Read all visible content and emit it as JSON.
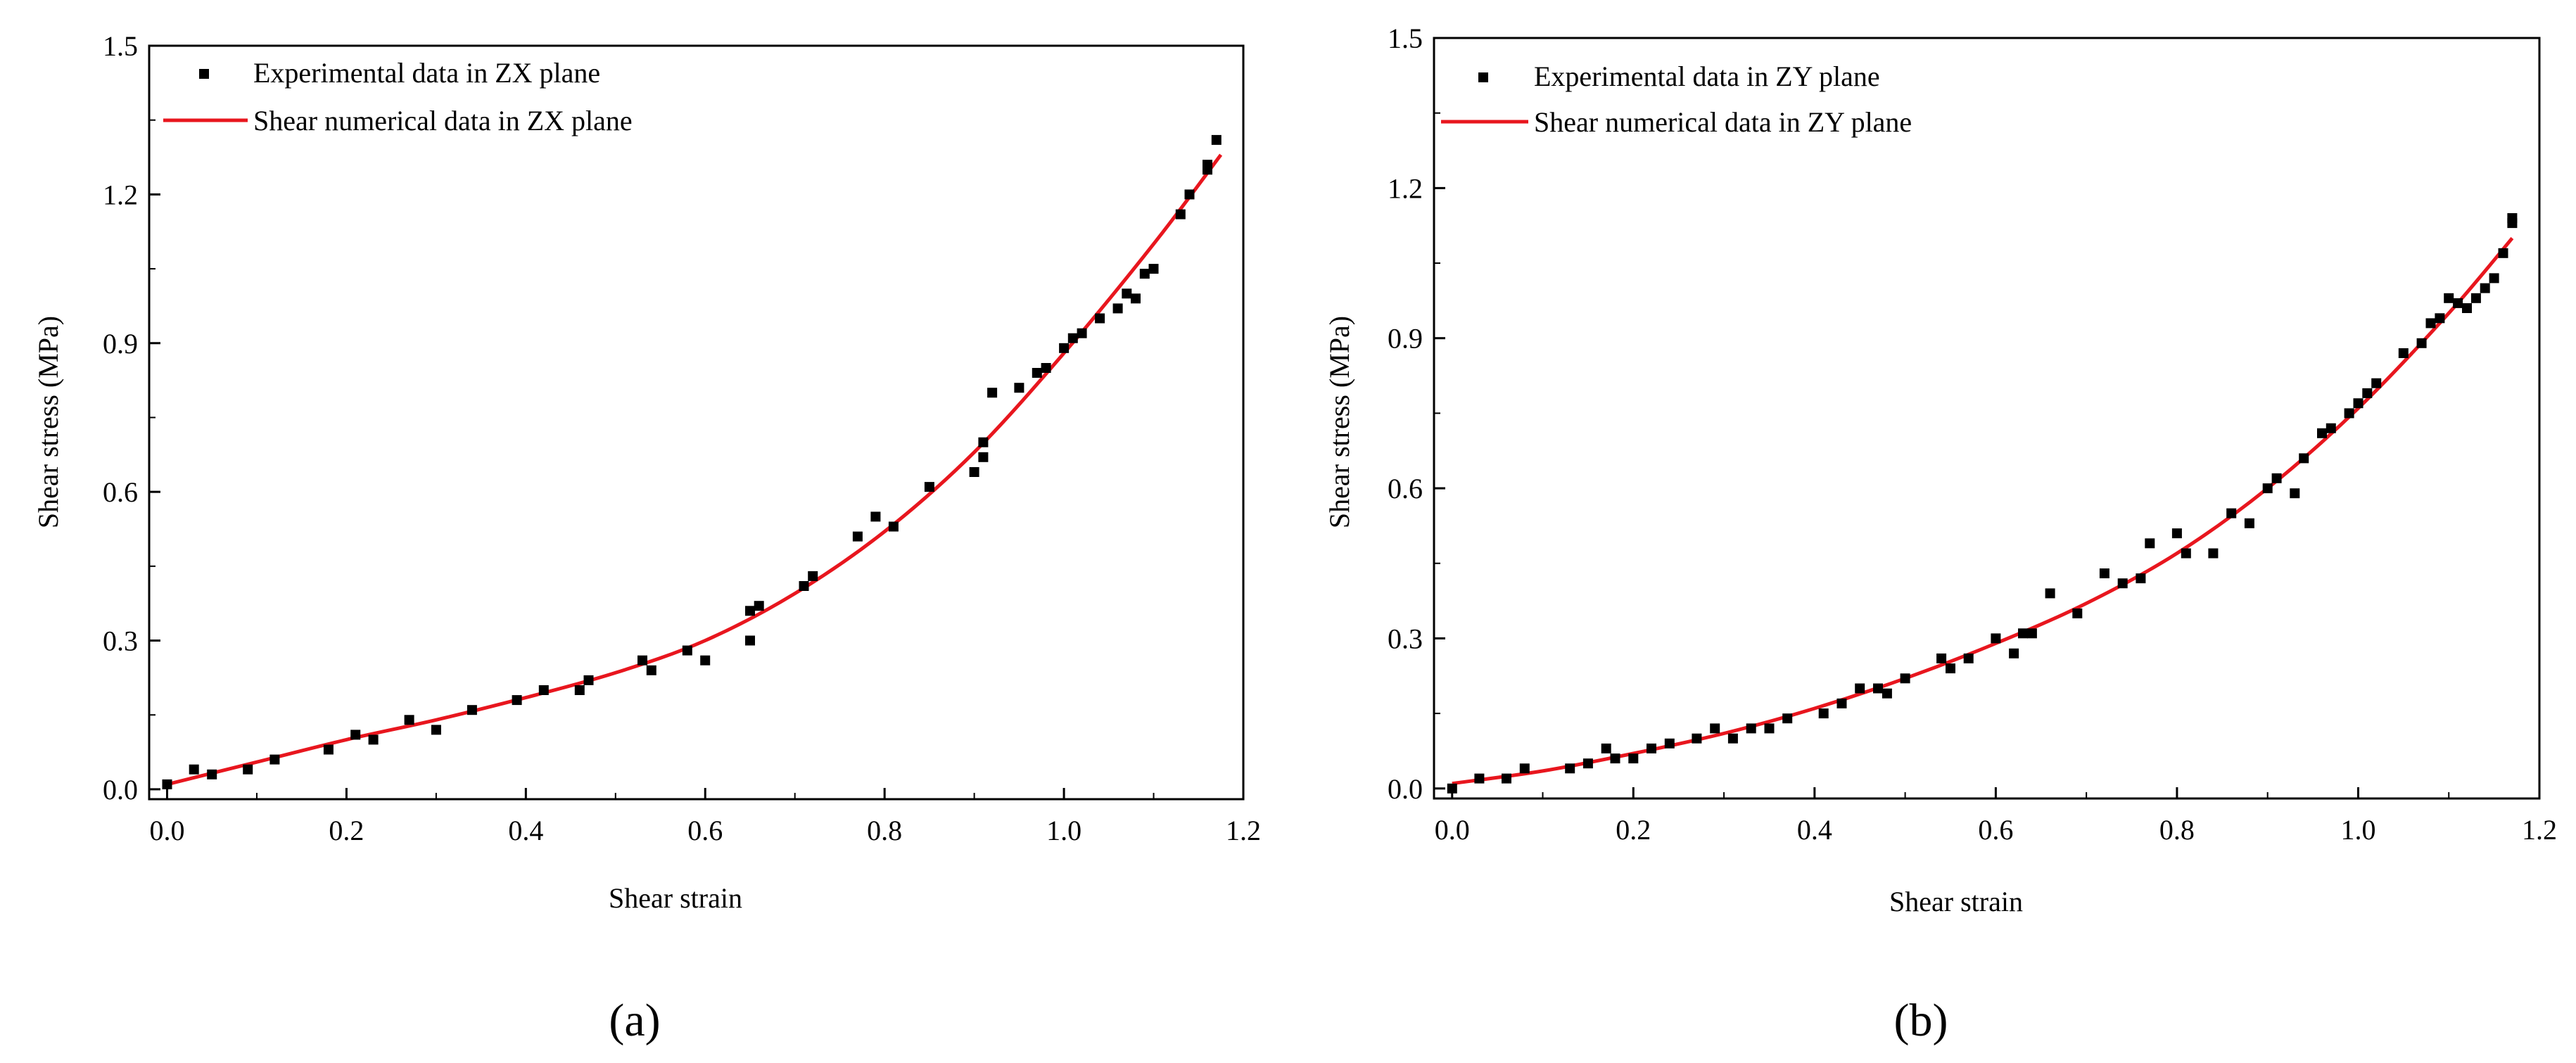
{
  "panel_labels": [
    "(a)",
    "(b)"
  ],
  "chart_data": [
    {
      "type": "scatter",
      "panel": "(a)",
      "xlabel": "Shear strain",
      "ylabel": "Shear stress (MPa)",
      "xlim": [
        -0.02,
        1.2
      ],
      "ylim": [
        -0.02,
        1.5
      ],
      "xticks": [
        "0.0",
        "0.2",
        "0.4",
        "0.6",
        "0.8",
        "1.0",
        "1.2"
      ],
      "yticks": [
        "0.0",
        "0.3",
        "0.6",
        "0.9",
        "1.2",
        "1.5"
      ],
      "legend_position": "top-left",
      "colors": {
        "points": "#000000",
        "curve": "#e8161e"
      },
      "series": [
        {
          "name": "Experimental data in ZX plane",
          "kind": "points",
          "x": [
            0.0,
            0.03,
            0.05,
            0.09,
            0.12,
            0.18,
            0.21,
            0.23,
            0.27,
            0.3,
            0.34,
            0.39,
            0.42,
            0.46,
            0.47,
            0.53,
            0.54,
            0.58,
            0.6,
            0.65,
            0.65,
            0.66,
            0.71,
            0.72,
            0.77,
            0.79,
            0.81,
            0.85,
            0.9,
            0.91,
            0.91,
            0.92,
            0.95,
            0.97,
            0.98,
            1.0,
            1.01,
            1.02,
            1.04,
            1.06,
            1.07,
            1.08,
            1.09,
            1.1,
            1.13,
            1.14,
            1.16,
            1.16,
            1.17
          ],
          "y": [
            0.01,
            0.04,
            0.03,
            0.04,
            0.06,
            0.08,
            0.11,
            0.1,
            0.14,
            0.12,
            0.16,
            0.18,
            0.2,
            0.2,
            0.22,
            0.26,
            0.24,
            0.28,
            0.26,
            0.3,
            0.36,
            0.37,
            0.41,
            0.43,
            0.51,
            0.55,
            0.53,
            0.61,
            0.64,
            0.67,
            0.7,
            0.8,
            0.81,
            0.84,
            0.85,
            0.89,
            0.91,
            0.92,
            0.95,
            0.97,
            1.0,
            0.99,
            1.04,
            1.05,
            1.16,
            1.2,
            1.26,
            1.25,
            1.31
          ]
        },
        {
          "name": "Shear numerical data in ZX plane",
          "kind": "line",
          "x": [
            0.0,
            0.1,
            0.2,
            0.3,
            0.4,
            0.5,
            0.6,
            0.7,
            0.8,
            0.9,
            1.0,
            1.1,
            1.175
          ],
          "y": [
            0.01,
            0.055,
            0.1,
            0.14,
            0.185,
            0.235,
            0.3,
            0.395,
            0.52,
            0.68,
            0.88,
            1.1,
            1.28
          ]
        }
      ]
    },
    {
      "type": "scatter",
      "panel": "(b)",
      "xlabel": "Shear strain",
      "ylabel": "Shear stress (MPa)",
      "xlim": [
        -0.02,
        1.2
      ],
      "ylim": [
        -0.02,
        1.5
      ],
      "xticks": [
        "0.0",
        "0.2",
        "0.4",
        "0.6",
        "0.8",
        "1.0",
        "1.2"
      ],
      "yticks": [
        "0.0",
        "0.3",
        "0.6",
        "0.9",
        "1.2",
        "1.5"
      ],
      "legend_position": "top-left",
      "colors": {
        "points": "#000000",
        "curve": "#e8161e"
      },
      "series": [
        {
          "name": "Experimental data in ZY plane",
          "kind": "points",
          "x": [
            0.0,
            0.03,
            0.06,
            0.08,
            0.13,
            0.15,
            0.17,
            0.18,
            0.2,
            0.22,
            0.24,
            0.27,
            0.29,
            0.31,
            0.33,
            0.35,
            0.37,
            0.41,
            0.43,
            0.45,
            0.47,
            0.48,
            0.5,
            0.54,
            0.55,
            0.57,
            0.6,
            0.62,
            0.63,
            0.64,
            0.66,
            0.69,
            0.72,
            0.74,
            0.76,
            0.77,
            0.8,
            0.81,
            0.84,
            0.86,
            0.88,
            0.9,
            0.91,
            0.93,
            0.94,
            0.96,
            0.97,
            0.99,
            1.0,
            1.01,
            1.02,
            1.05,
            1.07,
            1.08,
            1.09,
            1.1,
            1.11,
            1.12,
            1.13,
            1.14,
            1.15,
            1.16,
            1.17,
            1.17
          ],
          "y": [
            0.0,
            0.02,
            0.02,
            0.04,
            0.04,
            0.05,
            0.08,
            0.06,
            0.06,
            0.08,
            0.09,
            0.1,
            0.12,
            0.1,
            0.12,
            0.12,
            0.14,
            0.15,
            0.17,
            0.2,
            0.2,
            0.19,
            0.22,
            0.26,
            0.24,
            0.26,
            0.3,
            0.27,
            0.31,
            0.31,
            0.39,
            0.35,
            0.43,
            0.41,
            0.42,
            0.49,
            0.51,
            0.47,
            0.47,
            0.55,
            0.53,
            0.6,
            0.62,
            0.59,
            0.66,
            0.71,
            0.72,
            0.75,
            0.77,
            0.79,
            0.81,
            0.87,
            0.89,
            0.93,
            0.94,
            0.98,
            0.97,
            0.96,
            0.98,
            1.0,
            1.02,
            1.07,
            1.14,
            1.13
          ]
        },
        {
          "name": "Shear numerical data in ZY plane",
          "kind": "line",
          "x": [
            0.0,
            0.1,
            0.2,
            0.3,
            0.4,
            0.5,
            0.6,
            0.7,
            0.8,
            0.9,
            1.0,
            1.1,
            1.17
          ],
          "y": [
            0.01,
            0.035,
            0.07,
            0.11,
            0.16,
            0.22,
            0.29,
            0.37,
            0.47,
            0.6,
            0.76,
            0.95,
            1.1
          ]
        }
      ]
    }
  ]
}
